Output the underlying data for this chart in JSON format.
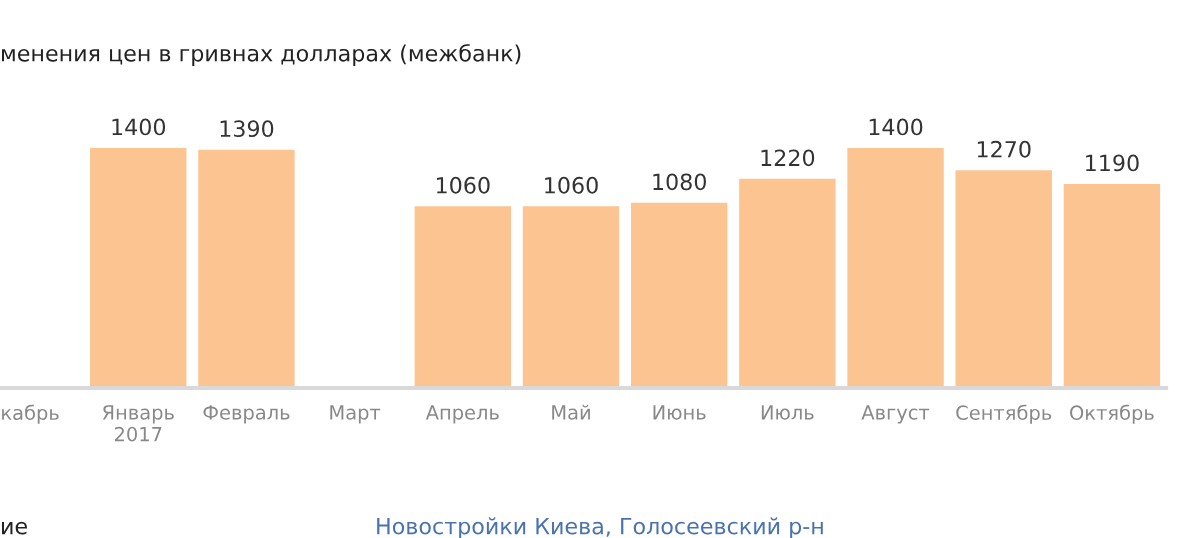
{
  "chart_data": {
    "type": "bar",
    "title": "менения цен в гривнах долларах (межбанк)",
    "categories": [
      "кабрь",
      "Январь\n2017",
      "Февраль",
      "Март",
      "Апрель",
      "Май",
      "Июнь",
      "Июль",
      "Август",
      "Сентябрь",
      "Октябрь"
    ],
    "values": [
      null,
      1400,
      1390,
      null,
      1060,
      1060,
      1080,
      1220,
      1400,
      1270,
      1190
    ],
    "color": "#fbc490",
    "data_labels": true,
    "grid": false,
    "legend": false,
    "annotations": [
      "ие",
      "Новостройки Киева, Голосеевский р-н"
    ]
  }
}
